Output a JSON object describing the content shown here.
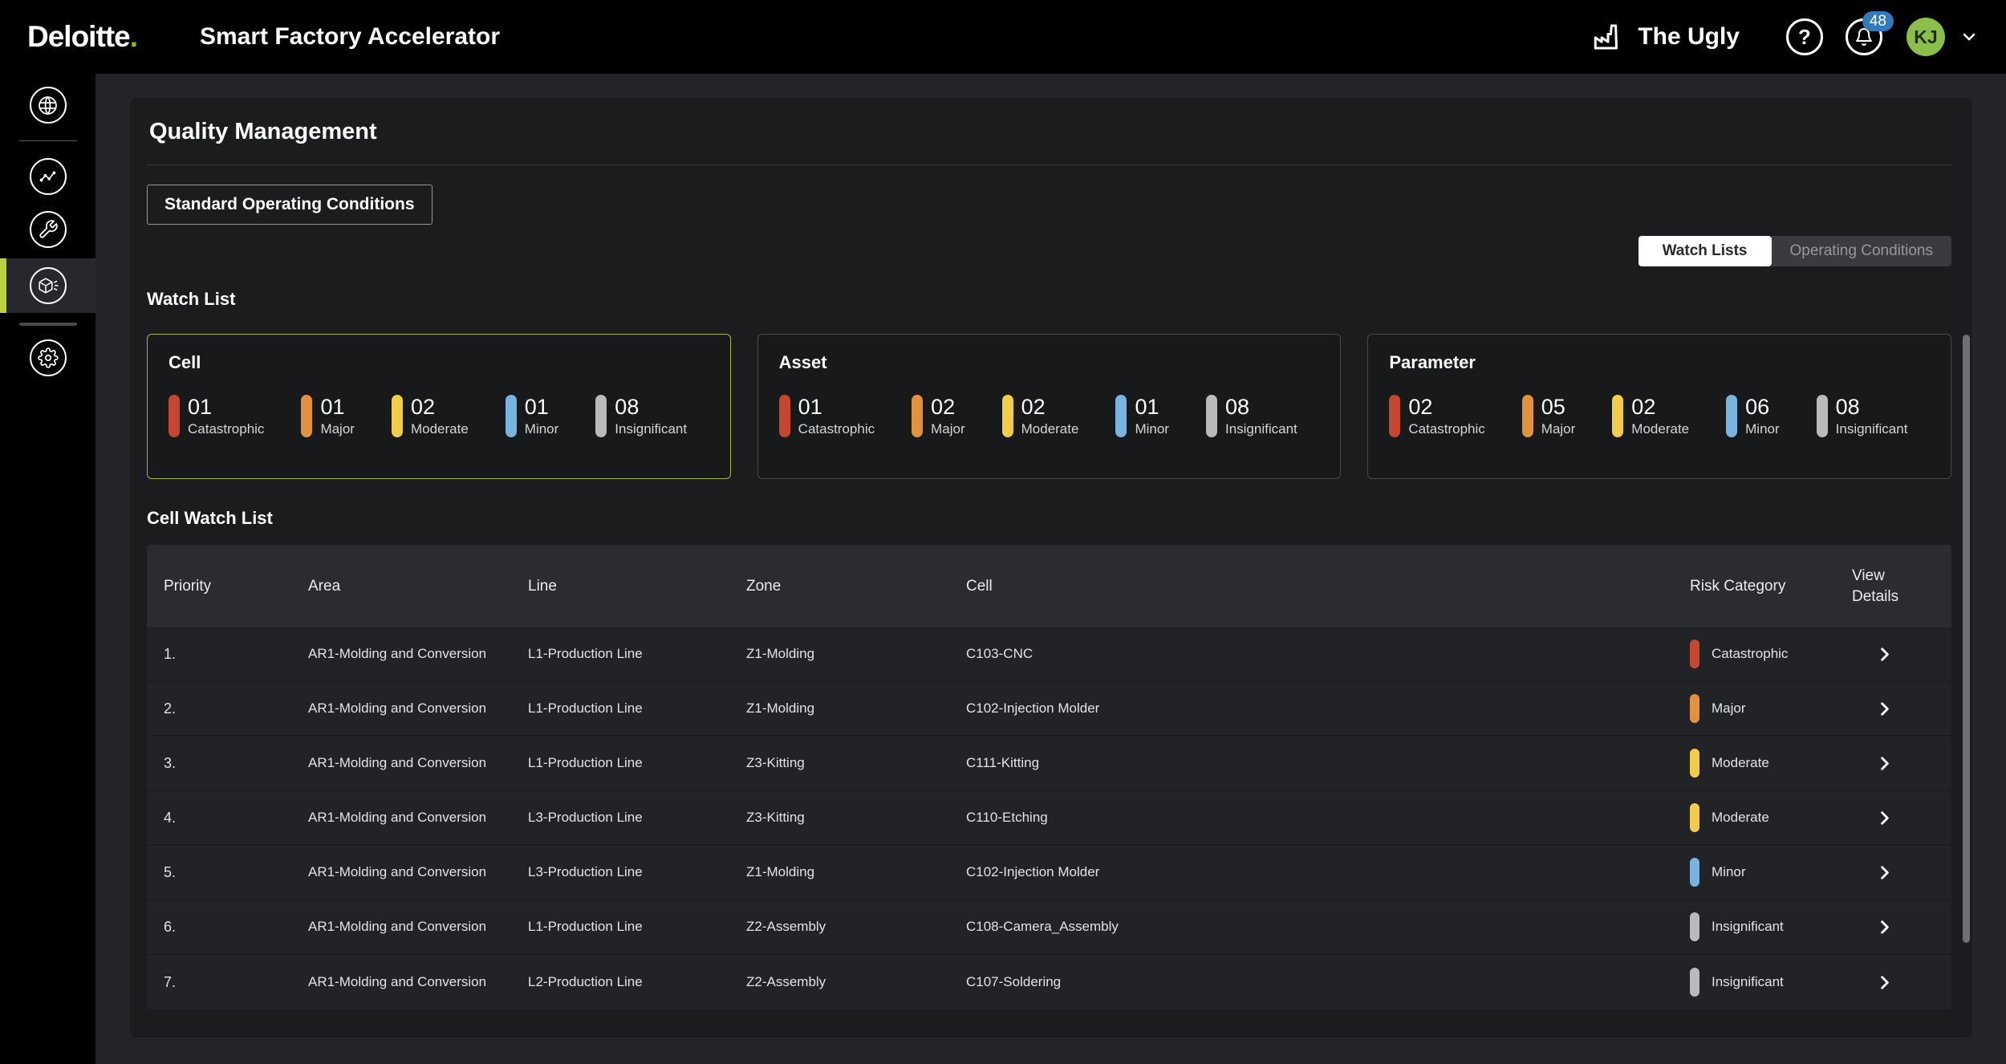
{
  "header": {
    "logo_text": "Deloitte",
    "logo_dot": ".",
    "app_title": "Smart Factory Accelerator",
    "site_label": "The Ugly",
    "help_glyph": "?",
    "notification_count": "48",
    "avatar_initials": "KJ"
  },
  "sidebar": {
    "items": [
      {
        "icon": "globe-icon",
        "active": false
      },
      {
        "icon": "trend-chart-icon",
        "active": false
      },
      {
        "icon": "wrench-icon",
        "active": false
      },
      {
        "icon": "cube-icon",
        "active": true
      },
      {
        "icon": "gear-icon",
        "active": false
      }
    ]
  },
  "page": {
    "title": "Quality Management",
    "soc_button_label": "Standard Operating Conditions",
    "tabs": [
      {
        "label": "Watch Lists",
        "active": true
      },
      {
        "label": "Operating Conditions",
        "active": false
      }
    ],
    "watch_list": {
      "heading": "Watch List",
      "cards": [
        {
          "title": "Cell",
          "selected": true,
          "stats": [
            {
              "count": "01",
              "label": "Catastrophic",
              "color": "#c5472f"
            },
            {
              "count": "01",
              "label": "Major",
              "color": "#e2913c"
            },
            {
              "count": "02",
              "label": "Moderate",
              "color": "#f2cd49"
            },
            {
              "count": "01",
              "label": "Minor",
              "color": "#77b4e2"
            },
            {
              "count": "08",
              "label": "Insignificant",
              "color": "#b9babc"
            }
          ]
        },
        {
          "title": "Asset",
          "selected": false,
          "stats": [
            {
              "count": "01",
              "label": "Catastrophic",
              "color": "#c5472f"
            },
            {
              "count": "02",
              "label": "Major",
              "color": "#e2913c"
            },
            {
              "count": "02",
              "label": "Moderate",
              "color": "#f2cd49"
            },
            {
              "count": "01",
              "label": "Minor",
              "color": "#77b4e2"
            },
            {
              "count": "08",
              "label": "Insignificant",
              "color": "#b9babc"
            }
          ]
        },
        {
          "title": "Parameter",
          "selected": false,
          "stats": [
            {
              "count": "02",
              "label": "Catastrophic",
              "color": "#c5472f"
            },
            {
              "count": "05",
              "label": "Major",
              "color": "#e2913c"
            },
            {
              "count": "02",
              "label": "Moderate",
              "color": "#f2cd49"
            },
            {
              "count": "06",
              "label": "Minor",
              "color": "#77b4e2"
            },
            {
              "count": "08",
              "label": "Insignificant",
              "color": "#b9babc"
            }
          ]
        }
      ]
    },
    "cell_watch_list": {
      "heading": "Cell Watch List",
      "columns": [
        "Priority",
        "Area",
        "Line",
        "Zone",
        "Cell",
        "Risk Category",
        "View Details"
      ],
      "rows": [
        {
          "priority": "1.",
          "area": "AR1-Molding and Conversion",
          "line": "L1-Production Line",
          "zone": "Z1-Molding",
          "cell": "C103-CNC",
          "risk": "Catastrophic",
          "risk_color": "#c5472f"
        },
        {
          "priority": "2.",
          "area": "AR1-Molding and Conversion",
          "line": "L1-Production Line",
          "zone": "Z1-Molding",
          "cell": "C102-Injection Molder",
          "risk": "Major",
          "risk_color": "#e2913c"
        },
        {
          "priority": "3.",
          "area": "AR1-Molding and Conversion",
          "line": "L1-Production Line",
          "zone": "Z3-Kitting",
          "cell": "C111-Kitting",
          "risk": "Moderate",
          "risk_color": "#f2cd49"
        },
        {
          "priority": "4.",
          "area": "AR1-Molding and Conversion",
          "line": "L3-Production Line",
          "zone": "Z3-Kitting",
          "cell": "C110-Etching",
          "risk": "Moderate",
          "risk_color": "#f2cd49"
        },
        {
          "priority": "5.",
          "area": "AR1-Molding and Conversion",
          "line": "L3-Production Line",
          "zone": "Z1-Molding",
          "cell": "C102-Injection Molder",
          "risk": "Minor",
          "risk_color": "#77b4e2"
        },
        {
          "priority": "6.",
          "area": "AR1-Molding and Conversion",
          "line": "L1-Production Line",
          "zone": "Z2-Assembly",
          "cell": "C108-Camera_Assembly",
          "risk": "Insignificant",
          "risk_color": "#b9babc"
        },
        {
          "priority": "7.",
          "area": "AR1-Molding and Conversion",
          "line": "L2-Production Line",
          "zone": "Z2-Assembly",
          "cell": "C107-Soldering",
          "risk": "Insignificant",
          "risk_color": "#b9babc"
        }
      ]
    }
  },
  "colors": {
    "sidebar_accent_green": "#bdd243",
    "brand_green": "#86bc25",
    "selected_card_border": "#a6b442",
    "badge_blue": "#3279be",
    "avatar_green": "#8cbf4a",
    "catastrophic": "#c5472f",
    "major": "#e2913c",
    "moderate": "#f2cd49",
    "minor": "#77b4e2",
    "insignificant": "#b9babc"
  }
}
